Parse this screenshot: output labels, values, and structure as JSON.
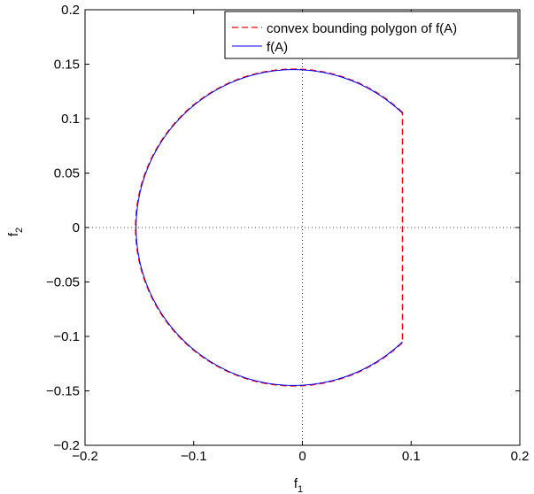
{
  "chart_data": {
    "type": "line",
    "xlabel": {
      "base": "f",
      "sub": "1"
    },
    "ylabel": {
      "base": "f",
      "sub": "2"
    },
    "xlim": [
      -0.2,
      0.2
    ],
    "ylim": [
      -0.2,
      0.2
    ],
    "x_ticks": [
      "−0.2",
      "−0.1",
      "0",
      "0.1",
      "0.2"
    ],
    "y_ticks": [
      "0.2",
      "0.15",
      "0.1",
      "0.05",
      "0",
      "−0.05",
      "−0.1",
      "−0.15",
      "−0.2"
    ],
    "x_tick_values": [
      -0.2,
      -0.1,
      0,
      0.1,
      0.2
    ],
    "y_tick_values": [
      0.2,
      0.15,
      0.1,
      0.05,
      0,
      -0.05,
      -0.1,
      -0.15,
      -0.2
    ],
    "grid": false,
    "zero_lines": true,
    "legend_position": "top-right",
    "series": [
      {
        "name": "convex bounding polygon of f(A)",
        "style": "dashed",
        "color": "#ff0000",
        "arc_center": [
          -0.008,
          0
        ],
        "arc_radius": 0.1455,
        "x": [
          0.092,
          0.08,
          0.06,
          0.04,
          0.02,
          0.0,
          -0.008,
          -0.03,
          -0.06,
          -0.09,
          -0.12,
          -0.14,
          -0.15,
          -0.1535,
          -0.15,
          -0.14,
          -0.12,
          -0.09,
          -0.06,
          -0.03,
          -0.008,
          0.0,
          0.02,
          0.04,
          0.06,
          0.08,
          0.092,
          0.092
        ],
        "y": [
          0.107,
          0.117,
          0.131,
          0.14,
          0.145,
          0.1455,
          0.1455,
          0.144,
          0.135,
          0.119,
          0.093,
          0.065,
          0.04,
          0.0,
          -0.04,
          -0.065,
          -0.093,
          -0.119,
          -0.135,
          -0.144,
          -0.1455,
          -0.1455,
          -0.145,
          -0.14,
          -0.131,
          -0.117,
          -0.107,
          0.107
        ]
      },
      {
        "name": "f(A)",
        "style": "solid",
        "color": "#0000ff",
        "arc_center": [
          -0.008,
          0
        ],
        "arc_radius": 0.145,
        "x": [
          0.092,
          0.08,
          0.06,
          0.04,
          0.02,
          0.0,
          -0.008,
          -0.03,
          -0.06,
          -0.09,
          -0.12,
          -0.14,
          -0.15,
          -0.153,
          -0.15,
          -0.14,
          -0.12,
          -0.09,
          -0.06,
          -0.03,
          -0.008,
          0.0,
          0.02,
          0.04,
          0.06,
          0.08,
          0.092
        ],
        "y": [
          0.106,
          0.116,
          0.13,
          0.139,
          0.144,
          0.145,
          0.145,
          0.143,
          0.134,
          0.118,
          0.092,
          0.064,
          0.039,
          0.0,
          -0.039,
          -0.064,
          -0.092,
          -0.118,
          -0.134,
          -0.143,
          -0.145,
          -0.145,
          -0.144,
          -0.139,
          -0.13,
          -0.116,
          -0.106
        ]
      }
    ]
  }
}
